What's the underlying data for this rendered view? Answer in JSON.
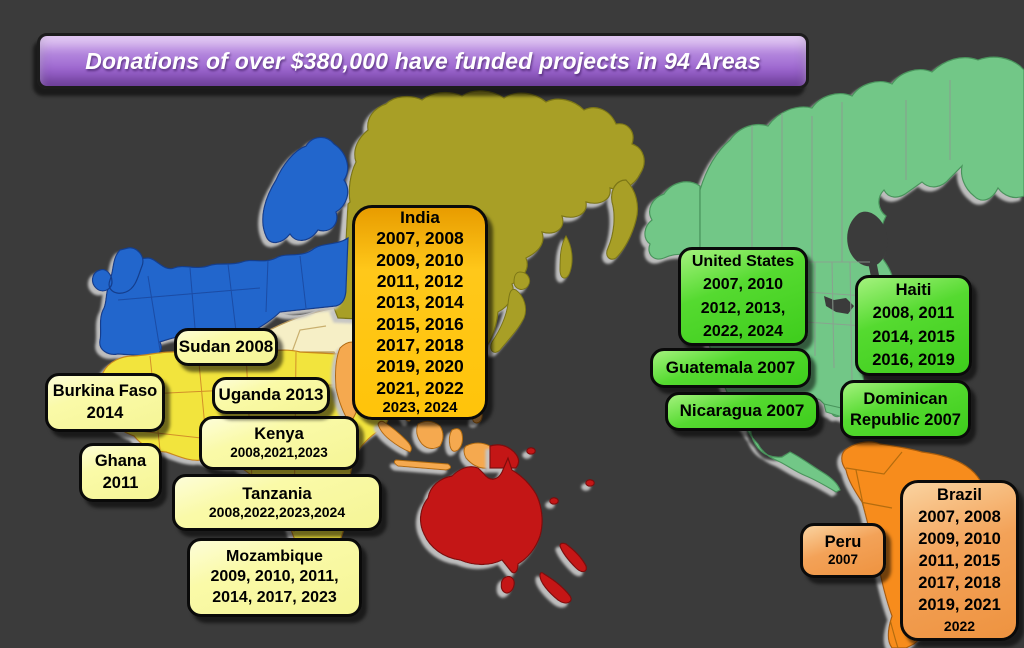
{
  "banner": {
    "title": "Donations of over $380,000 have funded projects in 94 Areas",
    "accent_purple_light": "#d3aced",
    "accent_purple_dark": "#8a50c0"
  },
  "map": {
    "colors": {
      "background": "#3b3b3b",
      "land_shadow": "#c4c4c4",
      "europe_blue": "#2166cc",
      "asia_olive": "#a89f28",
      "africa_yellow": "#f2e43c",
      "middle_east_cream": "#f6efc6",
      "india_seasia_orange": "#f5a94f",
      "oceania_red": "#c41616",
      "north_america_green": "#72c787",
      "south_america_orange": "#f78c1e"
    },
    "regions": [
      "europe",
      "russia-east-asia",
      "africa",
      "middle-east",
      "india-southeast-asia",
      "australia-oceania",
      "north-america",
      "south-america"
    ]
  },
  "callouts": [
    {
      "id": "india",
      "theme": "gold",
      "lines": [
        "India",
        "2007, 2008",
        "2009, 2010",
        "2011, 2012",
        "2013, 2014",
        "2015, 2016",
        "2017, 2018",
        "2019, 2020",
        "2021, 2022",
        "2023, 2024"
      ]
    },
    {
      "id": "sudan",
      "theme": "yellow",
      "lines": [
        "Sudan 2008"
      ]
    },
    {
      "id": "kenya",
      "theme": "yellow",
      "lines": [
        "Kenya",
        "2008,2021,2023"
      ]
    },
    {
      "id": "uganda",
      "theme": "yellow",
      "lines": [
        "Uganda 2013"
      ]
    },
    {
      "id": "burkina-faso",
      "theme": "yellow",
      "lines": [
        "Burkina Faso",
        "2014"
      ]
    },
    {
      "id": "ghana",
      "theme": "yellow",
      "lines": [
        "Ghana",
        "2011"
      ]
    },
    {
      "id": "tanzania",
      "theme": "yellow",
      "lines": [
        "Tanzania",
        "2008,2022,2023,2024"
      ]
    },
    {
      "id": "mozambique",
      "theme": "yellow",
      "lines": [
        "Mozambique",
        "2009, 2010, 2011,",
        "2014, 2017, 2023"
      ]
    },
    {
      "id": "united-states",
      "theme": "green",
      "lines": [
        "United States",
        "2007, 2010",
        "2012, 2013,",
        "2022, 2024"
      ]
    },
    {
      "id": "guatemala",
      "theme": "green",
      "lines": [
        "Guatemala 2007"
      ]
    },
    {
      "id": "nicaragua",
      "theme": "green",
      "lines": [
        "Nicaragua 2007"
      ]
    },
    {
      "id": "haiti",
      "theme": "green",
      "lines": [
        "Haiti",
        "2008, 2011",
        "2014, 2015",
        "2016, 2019"
      ]
    },
    {
      "id": "dominican-republic",
      "theme": "green",
      "lines": [
        "Dominican",
        "Republic 2007"
      ]
    },
    {
      "id": "peru",
      "theme": "orange",
      "lines": [
        "Peru",
        "2007"
      ]
    },
    {
      "id": "brazil",
      "theme": "orange",
      "lines": [
        "Brazil",
        "2007, 2008",
        "2009, 2010",
        "2011, 2015",
        "2017, 2018",
        "2019, 2021",
        "2022"
      ]
    }
  ]
}
